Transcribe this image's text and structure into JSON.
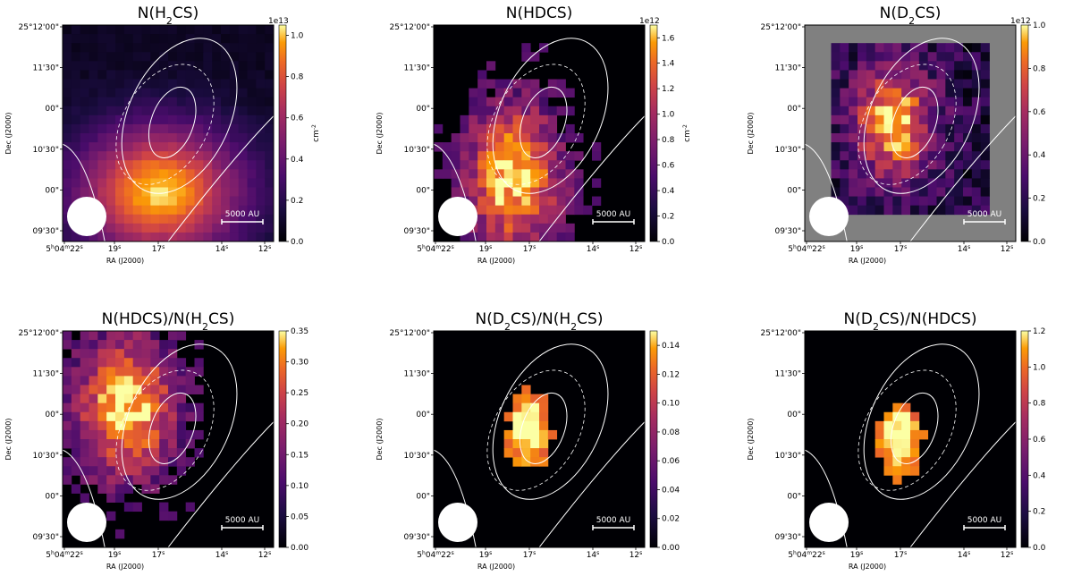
{
  "figure": {
    "panels": [
      {
        "id": "h2cs",
        "title_pre": "N(H",
        "title_sub": "2",
        "title_post": "CS)",
        "cbar_ticks": [
          "0.0",
          "0.2",
          "0.4",
          "0.6",
          "0.8",
          "1.0"
        ],
        "cbar_ticks_frac": [
          0,
          0.1905,
          0.381,
          0.5714,
          0.7619,
          0.9524
        ],
        "cbar_exponent": "1e13",
        "cbar_unit": "cm",
        "cbar_unit_exp": "-2",
        "background": "#000004",
        "mask": "none",
        "peak": [
          0.46,
          0.77
        ],
        "spread": [
          0.45,
          0.35
        ],
        "dashed": true
      },
      {
        "id": "hdcs",
        "title_pre": "N(HDCS)",
        "title_sub": "",
        "title_post": "",
        "cbar_ticks": [
          "0.0",
          "0.2",
          "0.4",
          "0.6",
          "0.8",
          "1.0",
          "1.2",
          "1.4",
          "1.6"
        ],
        "cbar_ticks_frac": [
          0,
          0.118,
          0.235,
          0.353,
          0.471,
          0.588,
          0.706,
          0.824,
          0.941
        ],
        "cbar_exponent": "1e12",
        "cbar_unit": "cm",
        "cbar_unit_exp": "-2",
        "background": "#000004",
        "mask": "blob",
        "peak": [
          0.38,
          0.7
        ],
        "spread": [
          0.28,
          0.42
        ],
        "dashed": true
      },
      {
        "id": "d2cs",
        "title_pre": "N(D",
        "title_sub": "2",
        "title_post": "CS)",
        "cbar_ticks": [
          "0.0",
          "0.2",
          "0.4",
          "0.6",
          "0.8",
          "1.0"
        ],
        "cbar_ticks_frac": [
          0,
          0.2,
          0.4,
          0.6,
          0.8,
          1.0
        ],
        "cbar_exponent": "1e12",
        "cbar_unit": "",
        "cbar_unit_exp": "",
        "background": "#808080",
        "mask": "square",
        "peak": [
          0.42,
          0.45
        ],
        "spread": [
          0.22,
          0.3
        ],
        "dashed": true
      },
      {
        "id": "hdcs_h2cs",
        "title_pre": "N(HDCS)/N(H",
        "title_sub": "2",
        "title_post": "CS)",
        "cbar_ticks": [
          "0.00",
          "0.05",
          "0.10",
          "0.15",
          "0.20",
          "0.25",
          "0.30",
          "0.35"
        ],
        "cbar_ticks_frac": [
          0,
          0.1429,
          0.2857,
          0.4286,
          0.5714,
          0.7143,
          0.8571,
          1.0
        ],
        "cbar_exponent": "",
        "cbar_unit": "",
        "cbar_unit_exp": "",
        "background": "#000004",
        "mask": "blob",
        "peak": [
          0.3,
          0.35
        ],
        "spread": [
          0.3,
          0.4
        ],
        "dashed": true
      },
      {
        "id": "d2cs_h2cs",
        "title_pre": "N(D",
        "title_sub": "2",
        "title_post": "CS)/N(H",
        "title_sub2": "2",
        "title_post2": "CS)",
        "cbar_ticks": [
          "0.00",
          "0.02",
          "0.04",
          "0.06",
          "0.08",
          "0.10",
          "0.12",
          "0.14"
        ],
        "cbar_ticks_frac": [
          0,
          0.1333,
          0.2667,
          0.4,
          0.5333,
          0.6667,
          0.8,
          0.9333
        ],
        "cbar_exponent": "",
        "cbar_unit": "",
        "cbar_unit_exp": "",
        "background": "#000004",
        "mask": "core",
        "peak": [
          0.45,
          0.45
        ],
        "spread": [
          0.12,
          0.22
        ],
        "dashed": true
      },
      {
        "id": "d2cs_hdcs",
        "title_pre": "N(D",
        "title_sub": "2",
        "title_post": "CS)/N(HDCS)",
        "cbar_ticks": [
          "0.0",
          "0.2",
          "0.4",
          "0.6",
          "0.8",
          "1.0",
          "1.2"
        ],
        "cbar_ticks_frac": [
          0,
          0.1667,
          0.3333,
          0.5,
          0.6667,
          0.8333,
          1.0
        ],
        "cbar_exponent": "",
        "cbar_unit": "",
        "cbar_unit_exp": "",
        "background": "#000004",
        "mask": "core",
        "peak": [
          0.45,
          0.5
        ],
        "spread": [
          0.12,
          0.2
        ],
        "dashed": true
      }
    ],
    "dec_ticks": [
      "25°12'00\"",
      "11'30\"",
      "00\"",
      "10'30\"",
      "00\"",
      "09'30\""
    ],
    "ra_ticks": [
      "5h04m22s",
      "19s",
      "17s",
      "14s",
      "12s"
    ],
    "ra_tick_main": "5",
    "ra_tick_h": "h",
    "ra_tick_mid": "04",
    "ra_tick_m": "m",
    "ra_tick_end": "22",
    "ra_tick_s": "s",
    "ra_tick_labels": [
      "19",
      "17",
      "14",
      "12"
    ],
    "xlabel": "RA (J2000)",
    "ylabel": "Dec (J2000)",
    "scalebar": "5000 AU"
  }
}
